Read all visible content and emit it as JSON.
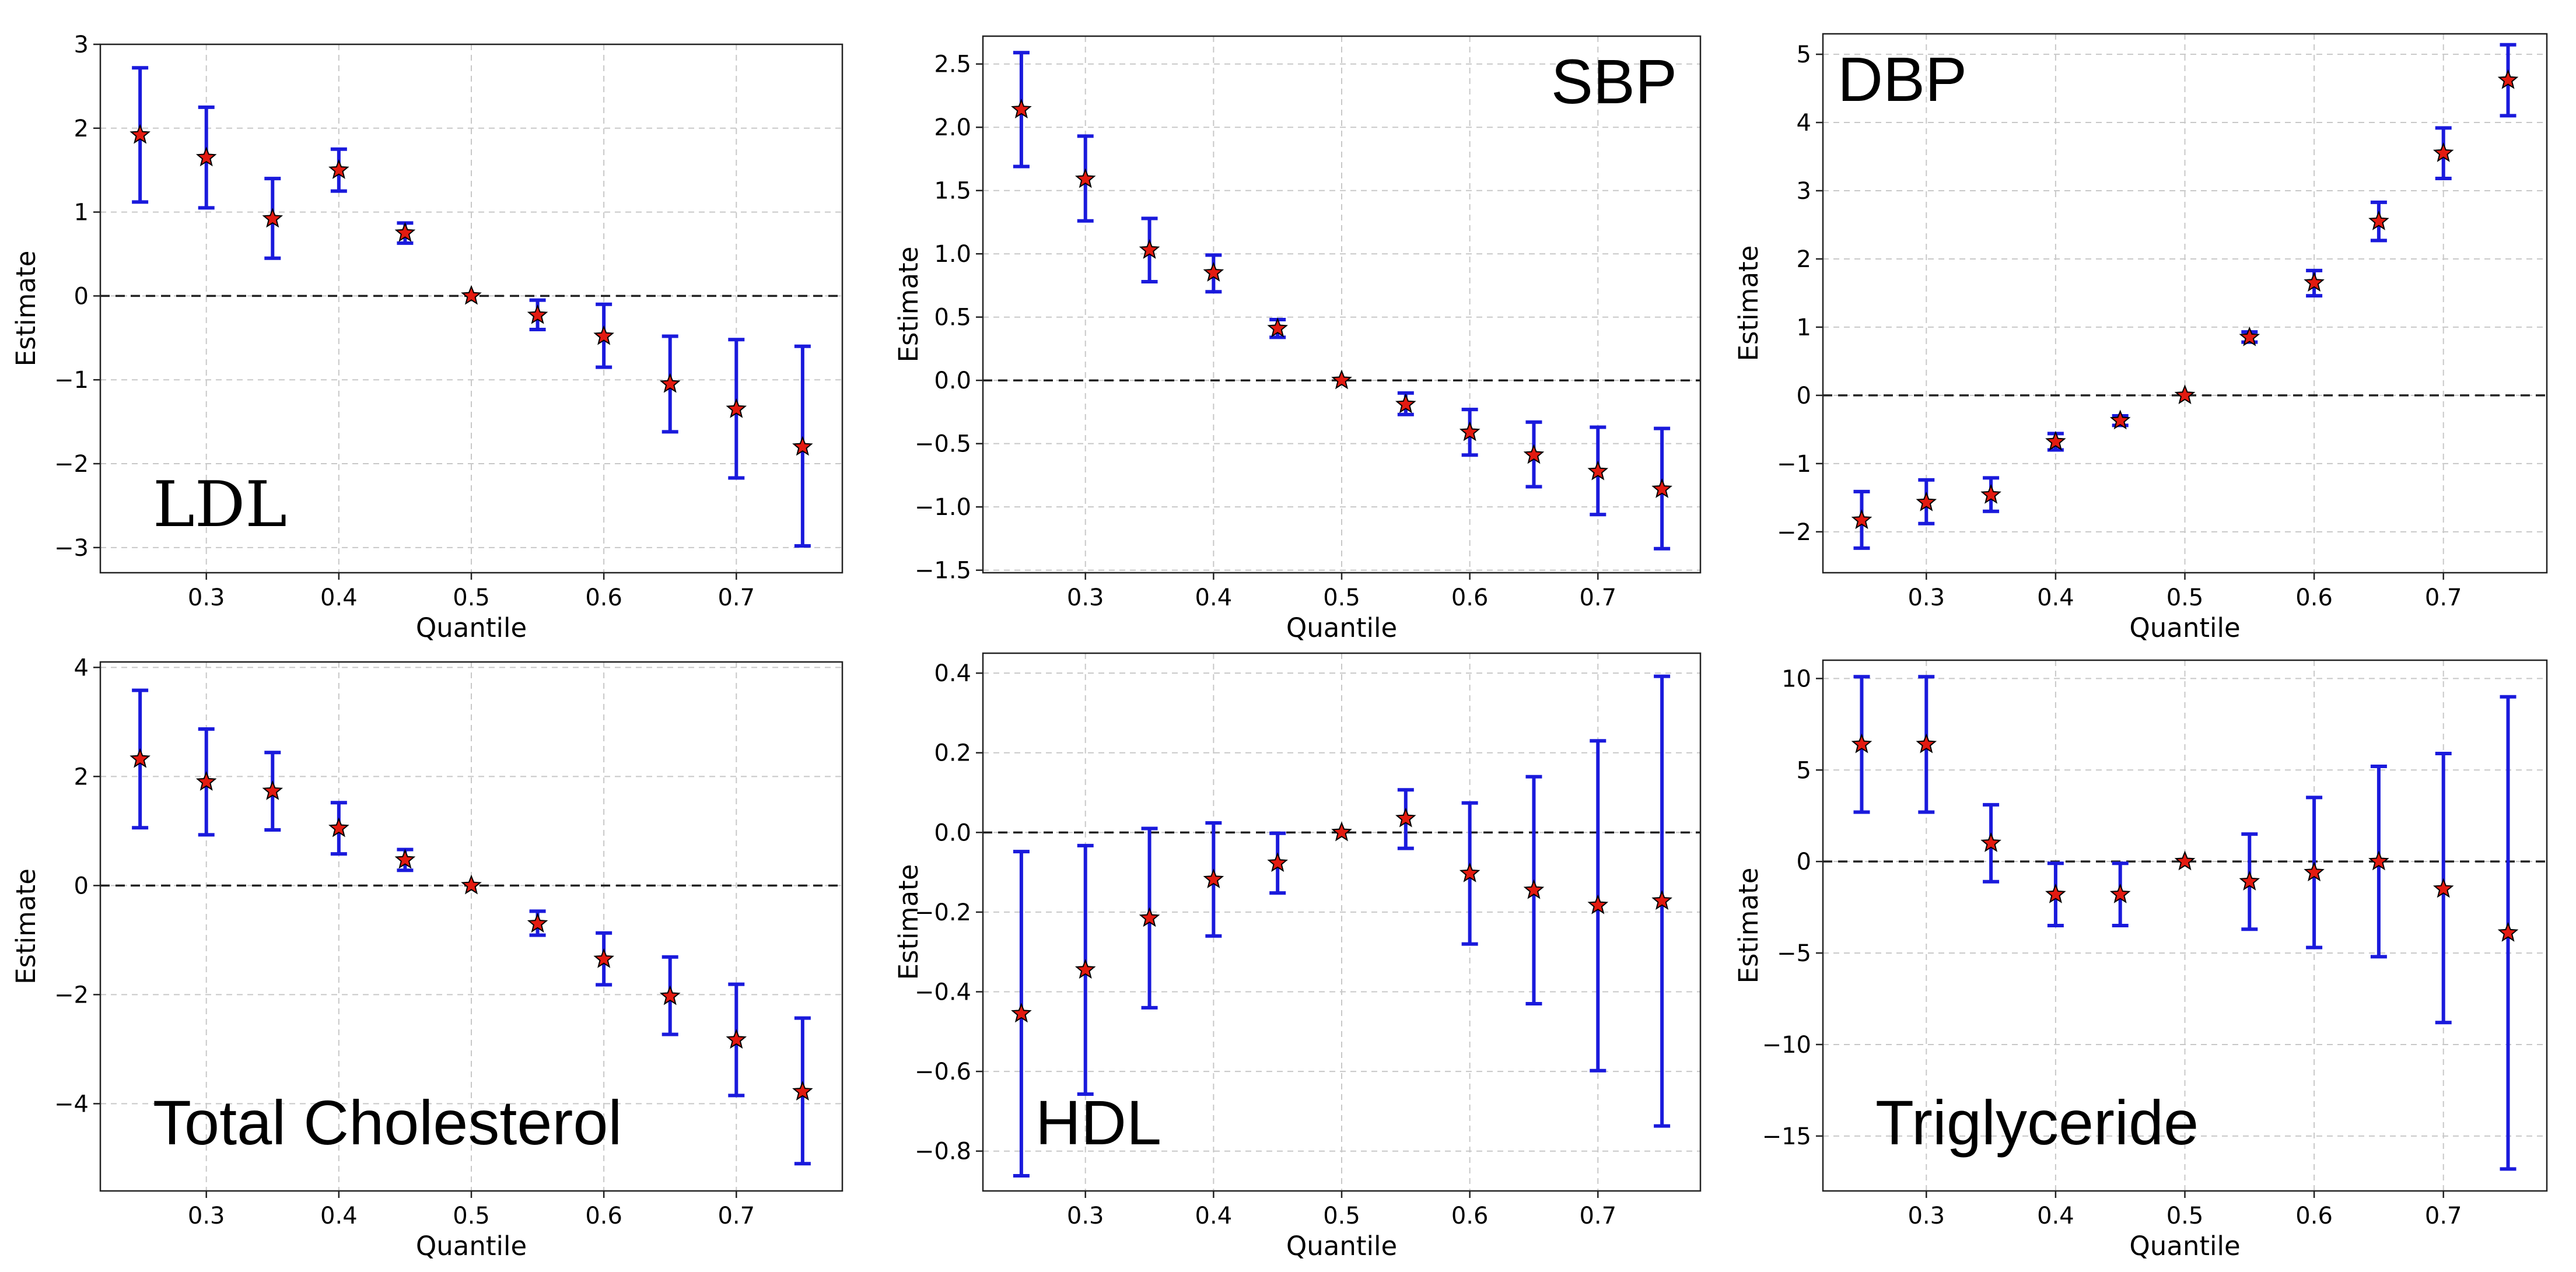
{
  "figure": {
    "x_axis_label": "Quantile",
    "y_axis_label": "Estimate"
  },
  "colors": {
    "error_bar": "#1a1adc",
    "marker_fill": "#e31a10",
    "marker_edge": "#000000",
    "zero_line": "#222222",
    "grid": "#c8c8c8"
  },
  "chart_data": [
    {
      "type": "errorbar",
      "panel_label": "LDL",
      "label_font": "serif",
      "label_placement": "bottom-left",
      "xlabel": "Quantile",
      "ylabel": "Estimate",
      "xlim": [
        0.22,
        0.78
      ],
      "ylim": [
        -3.3,
        3.0
      ],
      "xticks": [
        0.3,
        0.4,
        0.5,
        0.6,
        0.7
      ],
      "xtick_labels": [
        "0.3",
        "0.4",
        "0.5",
        "0.6",
        "0.7"
      ],
      "yticks": [
        -3,
        -2,
        -1,
        0,
        1,
        2,
        3
      ],
      "ytick_labels": [
        "−3",
        "−2",
        "−1",
        "0",
        "1",
        "2",
        "3"
      ],
      "x": [
        0.25,
        0.3,
        0.35,
        0.4,
        0.45,
        0.5,
        0.55,
        0.6,
        0.65,
        0.7,
        0.75
      ],
      "estimate": [
        1.92,
        1.65,
        0.92,
        1.5,
        0.75,
        0.0,
        -0.23,
        -0.48,
        -1.05,
        -1.35,
        -1.8
      ],
      "lower": [
        1.12,
        1.05,
        0.45,
        1.25,
        0.63,
        0.0,
        -0.4,
        -0.85,
        -1.62,
        -2.17,
        -2.98
      ],
      "upper": [
        2.72,
        2.25,
        1.4,
        1.75,
        0.87,
        0.0,
        -0.05,
        -0.1,
        -0.48,
        -0.52,
        -0.6
      ]
    },
    {
      "type": "errorbar",
      "panel_label": "SBP",
      "label_font": "sans",
      "label_placement": "top-right",
      "xlabel": "Quantile",
      "ylabel": "Estimate",
      "xlim": [
        0.22,
        0.78
      ],
      "ylim": [
        -1.52,
        2.72
      ],
      "xticks": [
        0.3,
        0.4,
        0.5,
        0.6,
        0.7
      ],
      "xtick_labels": [
        "0.3",
        "0.4",
        "0.5",
        "0.6",
        "0.7"
      ],
      "yticks": [
        -1.5,
        -1.0,
        -0.5,
        0.0,
        0.5,
        1.0,
        1.5,
        2.0,
        2.5
      ],
      "ytick_labels": [
        "−1.5",
        "−1.0",
        "−0.5",
        "0.0",
        "0.5",
        "1.0",
        "1.5",
        "2.0",
        "2.5"
      ],
      "x": [
        0.25,
        0.3,
        0.35,
        0.4,
        0.45,
        0.5,
        0.55,
        0.6,
        0.65,
        0.7,
        0.75
      ],
      "estimate": [
        2.14,
        1.59,
        1.03,
        0.85,
        0.41,
        0.0,
        -0.19,
        -0.41,
        -0.59,
        -0.72,
        -0.86
      ],
      "lower": [
        1.69,
        1.26,
        0.78,
        0.7,
        0.34,
        0.0,
        -0.27,
        -0.59,
        -0.84,
        -1.06,
        -1.33
      ],
      "upper": [
        2.59,
        1.93,
        1.28,
        0.99,
        0.48,
        0.0,
        -0.1,
        -0.23,
        -0.33,
        -0.37,
        -0.38
      ]
    },
    {
      "type": "errorbar",
      "panel_label": "DBP",
      "label_font": "sans",
      "label_placement": "top-left",
      "xlabel": "Quantile",
      "ylabel": "Estimate",
      "xlim": [
        0.22,
        0.78
      ],
      "ylim": [
        -2.6,
        5.3
      ],
      "xticks": [
        0.3,
        0.4,
        0.5,
        0.6,
        0.7
      ],
      "xtick_labels": [
        "0.3",
        "0.4",
        "0.5",
        "0.6",
        "0.7"
      ],
      "yticks": [
        -2,
        -1,
        0,
        1,
        2,
        3,
        4,
        5
      ],
      "ytick_labels": [
        "−2",
        "−1",
        "0",
        "1",
        "2",
        "3",
        "4",
        "5"
      ],
      "x": [
        0.25,
        0.3,
        0.35,
        0.4,
        0.45,
        0.5,
        0.55,
        0.6,
        0.65,
        0.7,
        0.75
      ],
      "estimate": [
        -1.83,
        -1.57,
        -1.46,
        -0.68,
        -0.37,
        0.0,
        0.85,
        1.65,
        2.55,
        3.55,
        4.62
      ],
      "lower": [
        -2.24,
        -1.88,
        -1.7,
        -0.8,
        -0.44,
        0.0,
        0.78,
        1.46,
        2.27,
        3.18,
        4.1
      ],
      "upper": [
        -1.41,
        -1.24,
        -1.21,
        -0.56,
        -0.3,
        0.0,
        0.93,
        1.83,
        2.83,
        3.92,
        5.14
      ]
    },
    {
      "type": "errorbar",
      "panel_label": "Total Cholesterol",
      "label_font": "sans",
      "label_placement": "bottom-left",
      "xlabel": "Quantile",
      "ylabel": "Estimate",
      "xlim": [
        0.22,
        0.78
      ],
      "ylim": [
        -5.6,
        4.1
      ],
      "xticks": [
        0.3,
        0.4,
        0.5,
        0.6,
        0.7
      ],
      "xtick_labels": [
        "0.3",
        "0.4",
        "0.5",
        "0.6",
        "0.7"
      ],
      "yticks": [
        -4,
        -2,
        0,
        2,
        4
      ],
      "ytick_labels": [
        "−4",
        "−2",
        "0",
        "2",
        "4"
      ],
      "x": [
        0.25,
        0.3,
        0.35,
        0.4,
        0.45,
        0.5,
        0.55,
        0.6,
        0.65,
        0.7,
        0.75
      ],
      "estimate": [
        2.32,
        1.9,
        1.73,
        1.05,
        0.47,
        0.0,
        -0.7,
        -1.35,
        -2.03,
        -2.83,
        -3.78
      ],
      "lower": [
        1.06,
        0.93,
        1.02,
        0.58,
        0.28,
        0.0,
        -0.91,
        -1.82,
        -2.73,
        -3.85,
        -5.1
      ],
      "upper": [
        3.58,
        2.87,
        2.44,
        1.52,
        0.66,
        0.0,
        -0.47,
        -0.87,
        -1.31,
        -1.81,
        -2.43
      ]
    },
    {
      "type": "errorbar",
      "panel_label": "HDL",
      "label_font": "sans",
      "label_placement": "bottom-left",
      "xlabel": "Quantile",
      "ylabel": "Estimate",
      "xlim": [
        0.22,
        0.78
      ],
      "ylim": [
        -0.9,
        0.45
      ],
      "xticks": [
        0.3,
        0.4,
        0.5,
        0.6,
        0.7
      ],
      "xtick_labels": [
        "0.3",
        "0.4",
        "0.5",
        "0.6",
        "0.7"
      ],
      "yticks": [
        -0.8,
        -0.6,
        -0.4,
        -0.2,
        0.0,
        0.2,
        0.4
      ],
      "ytick_labels": [
        "−0.8",
        "−0.6",
        "−0.4",
        "−0.2",
        "0.0",
        "0.2",
        "0.4"
      ],
      "x": [
        0.25,
        0.3,
        0.35,
        0.4,
        0.45,
        0.5,
        0.55,
        0.6,
        0.65,
        0.7,
        0.75
      ],
      "estimate": [
        -0.455,
        -0.345,
        -0.215,
        -0.118,
        -0.077,
        0.0,
        0.035,
        -0.103,
        -0.145,
        -0.183,
        -0.172
      ],
      "lower": [
        -0.862,
        -0.657,
        -0.44,
        -0.26,
        -0.152,
        0.0,
        -0.04,
        -0.28,
        -0.43,
        -0.598,
        -0.737
      ],
      "upper": [
        -0.048,
        -0.033,
        0.01,
        0.024,
        -0.002,
        0.0,
        0.107,
        0.074,
        0.14,
        0.23,
        0.392
      ]
    },
    {
      "type": "errorbar",
      "panel_label": "Triglyceride",
      "label_font": "sans",
      "label_placement": "bottom-left",
      "xlabel": "Quantile",
      "ylabel": "Estimate",
      "xlim": [
        0.22,
        0.78
      ],
      "ylim": [
        -18.0,
        11.0
      ],
      "xticks": [
        0.3,
        0.4,
        0.5,
        0.6,
        0.7
      ],
      "xtick_labels": [
        "0.3",
        "0.4",
        "0.5",
        "0.6",
        "0.7"
      ],
      "yticks": [
        -15,
        -10,
        -5,
        0,
        5,
        10
      ],
      "ytick_labels": [
        "−15",
        "−10",
        "−5",
        "0",
        "5",
        "10"
      ],
      "x": [
        0.25,
        0.3,
        0.35,
        0.4,
        0.45,
        0.5,
        0.55,
        0.6,
        0.65,
        0.7,
        0.75
      ],
      "estimate": [
        6.4,
        6.4,
        1.0,
        -1.8,
        -1.8,
        0.0,
        -1.1,
        -0.6,
        0.0,
        -1.5,
        -3.9
      ],
      "lower": [
        2.7,
        2.7,
        -1.1,
        -3.5,
        -3.5,
        0.0,
        -3.7,
        -4.7,
        -5.2,
        -8.8,
        -16.8
      ],
      "upper": [
        10.1,
        10.1,
        3.1,
        -0.1,
        -0.1,
        0.0,
        1.5,
        3.5,
        5.2,
        5.9,
        9.0
      ]
    }
  ]
}
